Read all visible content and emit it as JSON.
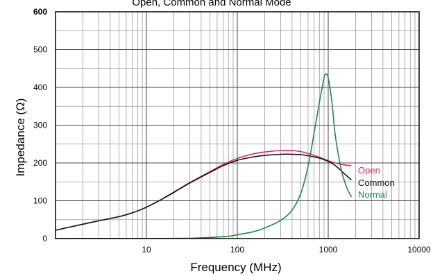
{
  "chart_data": {
    "type": "line",
    "title": "Open, Common and Normal Mode",
    "xlabel": "Frequency (MHz)",
    "ylabel": "Impedance (Ω)",
    "x_scale": "log",
    "xlim": [
      1,
      10000
    ],
    "ylim": [
      0,
      600
    ],
    "x_ticks": [
      "10",
      "100",
      "1000",
      "10000"
    ],
    "y_ticks": [
      "0",
      "100",
      "200",
      "300",
      "400",
      "500",
      "600"
    ],
    "grid": true,
    "legend_position": "right, beside curve ends",
    "series": [
      {
        "name": "Open",
        "color": "#e0245e",
        "x": [
          1,
          2,
          3,
          5,
          7,
          10,
          15,
          20,
          30,
          50,
          70,
          100,
          150,
          200,
          300,
          400,
          500,
          600,
          800,
          1000,
          1200,
          1500,
          1800
        ],
        "y": [
          22,
          38,
          47,
          58,
          68,
          83,
          105,
          123,
          148,
          177,
          196,
          212,
          224,
          229,
          233,
          233,
          230,
          225,
          215,
          206,
          200,
          195,
          193
        ]
      },
      {
        "name": "Common",
        "color": "#111111",
        "x": [
          1,
          2,
          3,
          5,
          7,
          10,
          15,
          20,
          30,
          50,
          70,
          100,
          150,
          200,
          300,
          400,
          500,
          600,
          800,
          1000,
          1200,
          1500,
          1800
        ],
        "y": [
          22,
          38,
          47,
          58,
          68,
          83,
          105,
          122,
          147,
          175,
          193,
          207,
          216,
          220,
          223,
          223,
          222,
          219,
          213,
          204,
          193,
          172,
          155
        ]
      },
      {
        "name": "Normal",
        "color": "#1a8a4a",
        "x": [
          1,
          10,
          30,
          50,
          80,
          100,
          150,
          200,
          300,
          400,
          500,
          600,
          700,
          800,
          900,
          950,
          1000,
          1100,
          1200,
          1400,
          1600,
          1800
        ],
        "y": [
          0,
          0,
          1,
          3,
          6,
          10,
          18,
          28,
          48,
          75,
          120,
          190,
          280,
          360,
          425,
          435,
          425,
          360,
          270,
          180,
          135,
          110
        ]
      }
    ]
  }
}
